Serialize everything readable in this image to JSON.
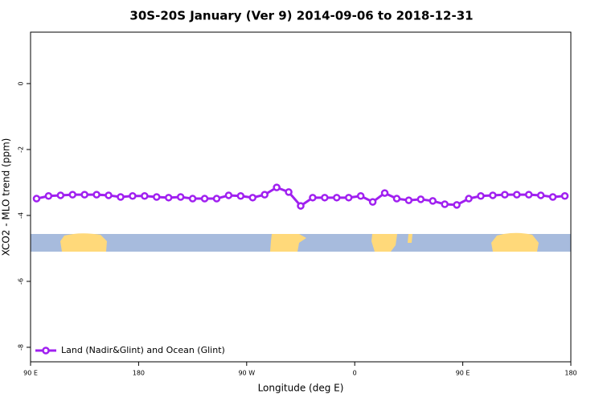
{
  "chart_data": {
    "type": "line",
    "title": "30S-20S January (Ver 9)   2014-09-06 to 2018-12-31",
    "x_label": "Longitude (deg E)",
    "y_label": "XCO2 - MLO trend (ppm)",
    "x": [
      95,
      105,
      115,
      125,
      135,
      145,
      155,
      165,
      175,
      185,
      195,
      205,
      215,
      225,
      235,
      245,
      255,
      265,
      275,
      285,
      295,
      305,
      315,
      325,
      335,
      345,
      355,
      365,
      375,
      385,
      395,
      405,
      415,
      425,
      435,
      445,
      455,
      465,
      475,
      485,
      495,
      505,
      515,
      525,
      535
    ],
    "series": [
      {
        "name": "Land (Nadir&Glint) and Ocean (Glint)",
        "color": "#a020f0",
        "values": [
          -3.49,
          -3.41,
          -3.39,
          -3.37,
          -3.37,
          -3.37,
          -3.39,
          -3.44,
          -3.41,
          -3.41,
          -3.44,
          -3.46,
          -3.44,
          -3.49,
          -3.49,
          -3.49,
          -3.39,
          -3.41,
          -3.46,
          -3.37,
          -3.15,
          -3.29,
          -3.71,
          -3.46,
          -3.46,
          -3.46,
          -3.46,
          -3.41,
          -3.59,
          -3.32,
          -3.49,
          -3.54,
          -3.51,
          -3.56,
          -3.66,
          -3.68,
          -3.49,
          -3.41,
          -3.39,
          -3.37,
          -3.37,
          -3.37,
          -3.39,
          -3.44,
          -3.41
        ]
      }
    ],
    "xlim": [
      90,
      540
    ],
    "xticks": [
      {
        "value": 90,
        "label": "90 E"
      },
      {
        "value": 180,
        "label": "180"
      },
      {
        "value": 270,
        "label": "90 W"
      },
      {
        "value": 360,
        "label": "0"
      },
      {
        "value": 450,
        "label": "90 E"
      },
      {
        "value": 540,
        "label": "180"
      }
    ],
    "ylim": [
      -8.44,
      1.56
    ],
    "yticks": [
      0,
      -2,
      -4,
      -6,
      -8
    ],
    "legend": "bottom-left"
  }
}
